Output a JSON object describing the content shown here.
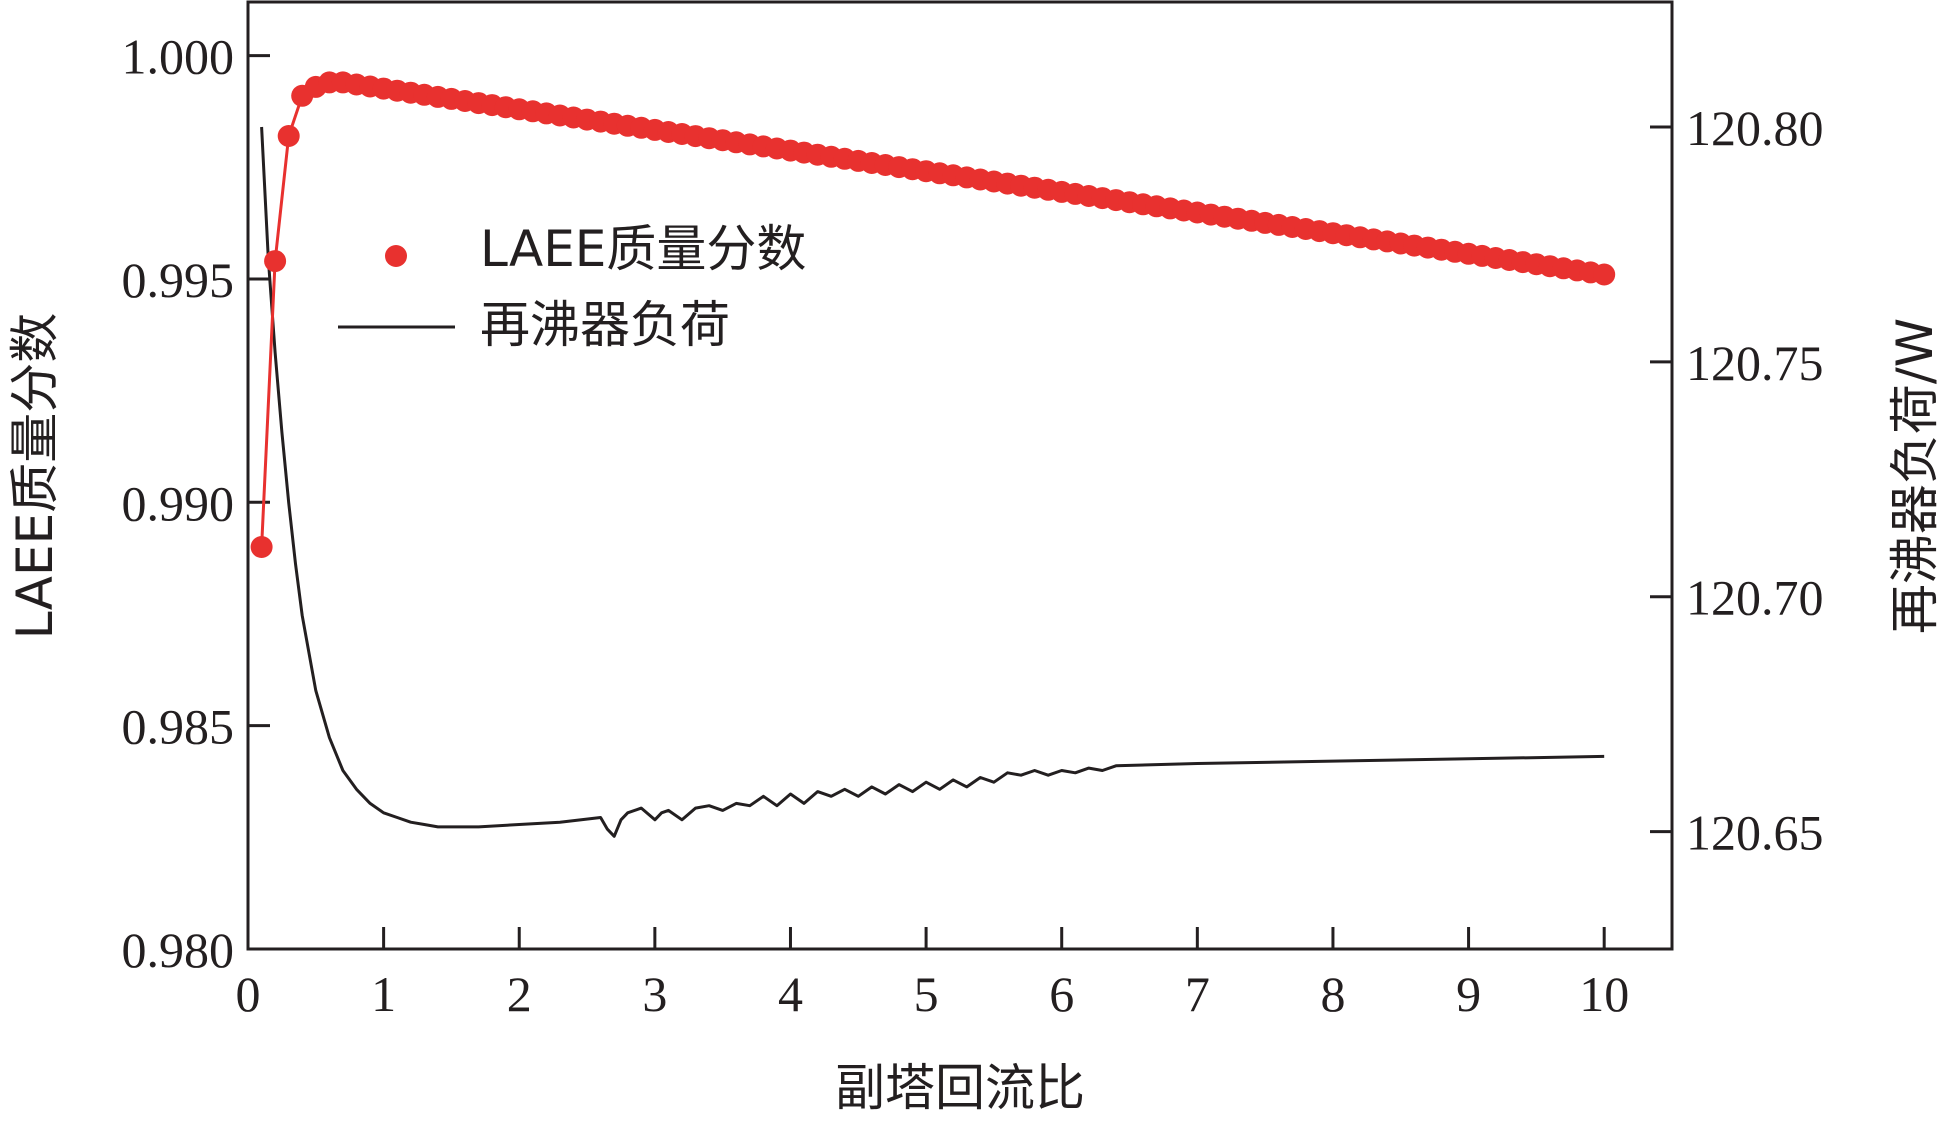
{
  "chart_data": {
    "type": "line",
    "xlabel": "副塔回流比",
    "ylabel_left": "LAEE质量分数",
    "ylabel_right": "再沸器负荷/W",
    "xlim": [
      0,
      10.5
    ],
    "ylim_left": [
      0.98,
      1.0012
    ],
    "ylim_right": [
      120.625,
      120.8266
    ],
    "x_ticks": [
      0,
      1,
      2,
      3,
      4,
      5,
      6,
      7,
      8,
      9,
      10
    ],
    "x_tick_labels": [
      "0",
      "1",
      "2",
      "3",
      "4",
      "5",
      "6",
      "7",
      "8",
      "9",
      "10"
    ],
    "y_left_ticks": [
      0.98,
      0.985,
      0.99,
      0.995,
      1.0
    ],
    "y_left_tick_labels": [
      "0.980",
      "0.985",
      "0.990",
      "0.995",
      "1.000"
    ],
    "y_right_ticks": [
      120.65,
      120.7,
      120.75,
      120.8
    ],
    "y_right_tick_labels": [
      "120.65",
      "120.70",
      "120.75",
      "120.80"
    ],
    "grid": false,
    "legend_position": "upper-left",
    "series": [
      {
        "name": "LAEE质量分数",
        "axis": "left",
        "style": "line+markers",
        "color": "#e8312f",
        "x_start": 0.1,
        "x_step": 0.1,
        "count": 100,
        "values_head": [
          0.989,
          0.9954,
          0.9982,
          0.9991,
          0.9993,
          0.9994,
          0.9994
        ],
        "x_peak": 0.7,
        "y_peak": 0.9994,
        "x_end": 10.0,
        "y_end": 0.9951
      },
      {
        "name": "再沸器负荷",
        "axis": "right",
        "style": "line",
        "color": "#231f20",
        "x": [
          0.1,
          0.15,
          0.2,
          0.25,
          0.3,
          0.35,
          0.4,
          0.5,
          0.6,
          0.7,
          0.8,
          0.9,
          1.0,
          1.1,
          1.2,
          1.3,
          1.4,
          1.5,
          1.7,
          2.0,
          2.3,
          2.6,
          2.65,
          2.7,
          2.75,
          2.8,
          2.9,
          3.0,
          3.05,
          3.1,
          3.2,
          3.3,
          3.4,
          3.5,
          3.6,
          3.7,
          3.8,
          3.9,
          4.0,
          4.1,
          4.2,
          4.3,
          4.4,
          4.5,
          4.6,
          4.7,
          4.8,
          4.9,
          5.0,
          5.1,
          5.2,
          5.3,
          5.4,
          5.5,
          5.6,
          5.7,
          5.8,
          5.9,
          6.0,
          6.1,
          6.2,
          6.3,
          6.4,
          7.0,
          8.0,
          9.0,
          10.0
        ],
        "values": [
          120.8,
          120.772,
          120.752,
          120.735,
          120.72,
          120.707,
          120.696,
          120.68,
          120.67,
          120.663,
          120.659,
          120.656,
          120.654,
          120.653,
          120.652,
          120.6515,
          120.651,
          120.651,
          120.651,
          120.6515,
          120.652,
          120.653,
          120.6505,
          120.649,
          120.6525,
          120.654,
          120.655,
          120.6525,
          120.654,
          120.6545,
          120.6525,
          120.655,
          120.6555,
          120.6545,
          120.656,
          120.6555,
          120.6575,
          120.6555,
          120.658,
          120.656,
          120.6585,
          120.6575,
          120.659,
          120.6575,
          120.6595,
          120.658,
          120.66,
          120.6585,
          120.6605,
          120.659,
          120.661,
          120.6595,
          120.6615,
          120.6605,
          120.6625,
          120.662,
          120.663,
          120.662,
          120.663,
          120.6625,
          120.6635,
          120.663,
          120.664,
          120.6645,
          120.665,
          120.6655,
          120.666
        ]
      }
    ]
  }
}
